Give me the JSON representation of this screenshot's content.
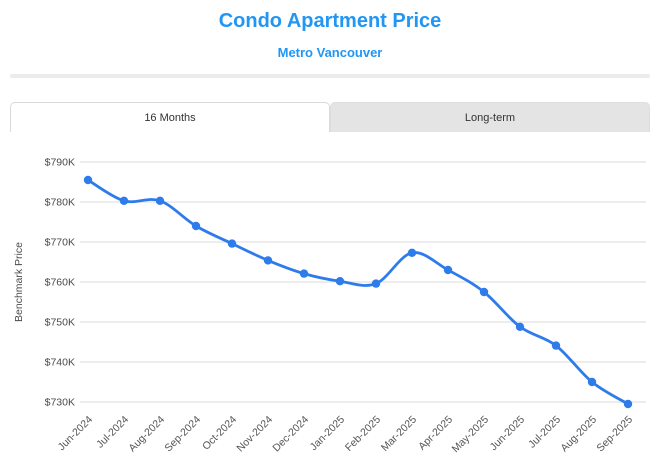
{
  "colors": {
    "accent": "#2196F3",
    "line": "#2E7CEB",
    "point": "#2E7CEB",
    "grid": "#E7E7E7",
    "axis_text": "#4A4A4A",
    "x_label_text": "#555555",
    "tab_text": "#333333",
    "tab_inactive_bg": "#E4E4E4",
    "divider": "#ECECEC"
  },
  "header": {
    "title": "Condo Apartment Price",
    "subtitle": "Metro Vancouver"
  },
  "tabs": [
    {
      "label": "16 Months",
      "active": true
    },
    {
      "label": "Long-term",
      "active": false
    }
  ],
  "chart_data": {
    "type": "line",
    "title": "Condo Apartment Price",
    "subtitle": "Metro Vancouver",
    "xlabel": "",
    "ylabel": "Benchmark Price",
    "unit": "thousand CAD",
    "categories": [
      "Jun-2024",
      "Jul-2024",
      "Aug-2024",
      "Sep-2024",
      "Oct-2024",
      "Nov-2024",
      "Dec-2024",
      "Jan-2025",
      "Feb-2025",
      "Mar-2025",
      "Apr-2025",
      "May-2025",
      "Jun-2025",
      "Jul-2025",
      "Aug-2025",
      "Sep-2025"
    ],
    "series": [
      {
        "name": "Benchmark Price",
        "values": [
          785.5,
          780.3,
          780.3,
          774.0,
          769.6,
          765.4,
          762.1,
          760.2,
          759.6,
          767.3,
          763.0,
          757.5,
          748.8,
          744.1,
          735.0,
          729.5
        ]
      }
    ],
    "y_ticks": [
      790,
      780,
      770,
      760,
      750,
      740,
      730
    ],
    "y_tick_labels": [
      "$790K",
      "$780K",
      "$770K",
      "$760K",
      "$750K",
      "$740K",
      "$730K"
    ],
    "ylim": [
      722.5,
      797.5
    ],
    "grid": true,
    "legend": "none",
    "x_tick_rotation": -45,
    "smooth": true
  }
}
